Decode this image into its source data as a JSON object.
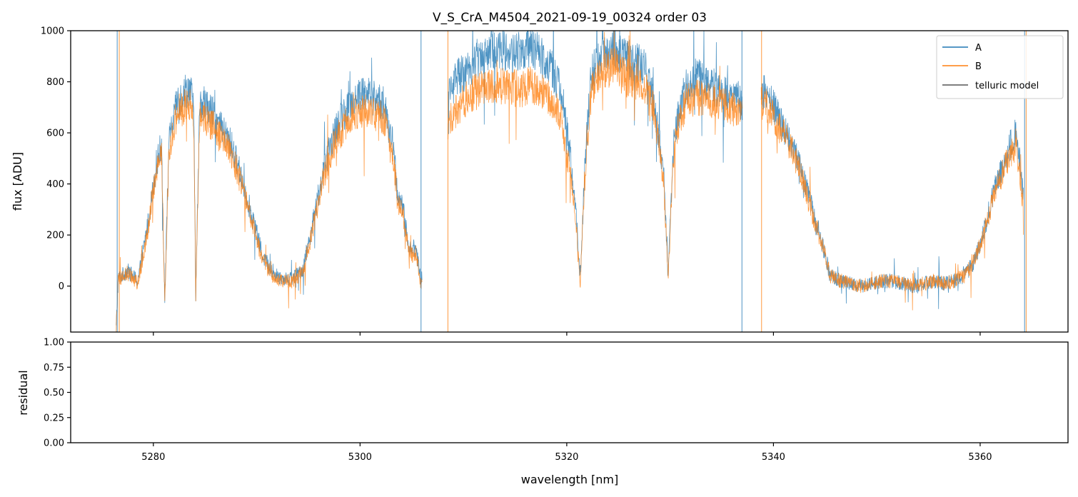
{
  "chart_data": [
    {
      "type": "line",
      "title": "V_S_CrA_M4504_2021-09-19_00324  order 03",
      "xlabel": "",
      "ylabel": "flux [ADU]",
      "xlim": [
        5272,
        5368.5
      ],
      "ylim": [
        -180,
        1000
      ],
      "x_ticks": [
        5280,
        5300,
        5320,
        5340,
        5360
      ],
      "x_tick_labels_shown": false,
      "y_ticks": [
        0,
        200,
        400,
        600,
        800,
        1000
      ],
      "grid": false,
      "legend_position": "top-right",
      "legend": [
        "A",
        "B",
        "telluric model"
      ],
      "colors": {
        "A": "#1f77b4",
        "B": "#ff7f0e",
        "telluric model": "#555555"
      },
      "series": [
        {
          "name": "A",
          "x": [
            5276.4,
            5276.6,
            5277.5,
            5278.5,
            5279.5,
            5280.3,
            5280.8,
            5281.1,
            5281.5,
            5282.3,
            5283.0,
            5283.5,
            5283.9,
            5284.1,
            5284.5,
            5285.5,
            5286.5,
            5287.5,
            5288.5,
            5289.5,
            5290.5,
            5291.5,
            5292.5,
            5293.5,
            5294.5,
            5295.5,
            5296.5,
            5297.5,
            5298.5,
            5299.5,
            5300.5,
            5301.5,
            5302.3,
            5302.9,
            5303.2,
            5303.6,
            5304.2,
            5304.8,
            5305.4,
            5305.9,
            5308.6,
            5309.5,
            5310.5,
            5311.5,
            5312.5,
            5313.5,
            5314.5,
            5315.5,
            5316.5,
            5317.5,
            5318.5,
            5319.5,
            5320.3,
            5320.8,
            5321.3,
            5321.8,
            5322.4,
            5323.5,
            5324.5,
            5325.5,
            5326.5,
            5327.5,
            5328.5,
            5329.4,
            5329.8,
            5330.4,
            5331.5,
            5332.5,
            5333.5,
            5334.5,
            5335.5,
            5336.5,
            5336.9,
            5338.9,
            5339.5,
            5340.5,
            5341.5,
            5342.5,
            5343.5,
            5344.5,
            5345.5,
            5346.5,
            5347.5,
            5348.5,
            5349.5,
            5350.5,
            5351.5,
            5352.5,
            5353.5,
            5354.5,
            5355.5,
            5356.5,
            5357.5,
            5358.5,
            5359.5,
            5360.5,
            5361.5,
            5362.5,
            5363.5,
            5364.2
          ],
          "y": [
            -170,
            30,
            60,
            20,
            250,
            480,
            560,
            -60,
            560,
            720,
            760,
            780,
            710,
            -30,
            730,
            690,
            620,
            560,
            430,
            280,
            130,
            50,
            30,
            30,
            70,
            260,
            460,
            600,
            680,
            740,
            760,
            730,
            720,
            580,
            560,
            370,
            290,
            140,
            150,
            20,
            760,
            820,
            850,
            900,
            920,
            930,
            910,
            920,
            940,
            900,
            860,
            760,
            520,
            350,
            20,
            520,
            840,
            920,
            940,
            900,
            880,
            860,
            720,
            420,
            40,
            600,
            780,
            820,
            800,
            770,
            760,
            750,
            700,
            770,
            740,
            660,
            580,
            480,
            340,
            200,
            40,
            20,
            10,
            0,
            10,
            20,
            20,
            10,
            0,
            10,
            20,
            10,
            20,
            40,
            100,
            240,
            400,
            500,
            620,
            350
          ]
        },
        {
          "name": "B",
          "x": [
            5276.4,
            5276.6,
            5277.5,
            5278.5,
            5279.5,
            5280.3,
            5280.8,
            5281.1,
            5281.5,
            5282.3,
            5283.0,
            5283.5,
            5283.9,
            5284.1,
            5284.5,
            5285.5,
            5286.5,
            5287.5,
            5288.5,
            5289.5,
            5290.5,
            5291.5,
            5292.5,
            5293.5,
            5294.5,
            5295.5,
            5296.5,
            5297.5,
            5298.5,
            5299.5,
            5300.5,
            5301.5,
            5302.3,
            5302.9,
            5303.2,
            5303.6,
            5304.2,
            5304.8,
            5305.4,
            5305.9,
            5308.6,
            5309.5,
            5310.5,
            5311.5,
            5312.5,
            5313.5,
            5314.5,
            5315.5,
            5316.5,
            5317.5,
            5318.5,
            5319.5,
            5320.3,
            5320.8,
            5321.3,
            5321.8,
            5322.4,
            5323.5,
            5324.5,
            5325.5,
            5326.5,
            5327.5,
            5328.5,
            5329.4,
            5329.8,
            5330.4,
            5331.5,
            5332.5,
            5333.5,
            5334.5,
            5335.5,
            5336.5,
            5336.9,
            5338.9,
            5339.5,
            5340.5,
            5341.5,
            5342.5,
            5343.5,
            5344.5,
            5345.5,
            5346.5,
            5347.5,
            5348.5,
            5349.5,
            5350.5,
            5351.5,
            5352.5,
            5353.5,
            5354.5,
            5355.5,
            5356.5,
            5357.5,
            5358.5,
            5359.5,
            5360.5,
            5361.5,
            5362.5,
            5363.5,
            5364.2
          ],
          "y": [
            -160,
            20,
            50,
            10,
            230,
            460,
            530,
            -80,
            530,
            680,
            700,
            720,
            660,
            -40,
            680,
            640,
            580,
            520,
            400,
            260,
            110,
            40,
            20,
            20,
            60,
            240,
            430,
            560,
            630,
            680,
            690,
            670,
            660,
            540,
            520,
            340,
            270,
            120,
            130,
            0,
            640,
            700,
            740,
            770,
            780,
            780,
            780,
            770,
            790,
            760,
            730,
            650,
            450,
            300,
            0,
            460,
            780,
            840,
            860,
            820,
            800,
            780,
            680,
            400,
            30,
            560,
            720,
            740,
            730,
            720,
            700,
            690,
            660,
            720,
            700,
            630,
            560,
            460,
            320,
            190,
            40,
            20,
            10,
            0,
            10,
            20,
            20,
            10,
            0,
            10,
            20,
            10,
            20,
            40,
            100,
            230,
            380,
            480,
            560,
            300
          ]
        },
        {
          "name": "telluric model",
          "x": [],
          "y": []
        }
      ]
    },
    {
      "type": "line",
      "title": "",
      "xlabel": "wavelength [nm]",
      "ylabel": "residual",
      "xlim": [
        5272,
        5368.5
      ],
      "ylim": [
        0,
        1
      ],
      "x_ticks": [
        5280,
        5300,
        5320,
        5340,
        5360
      ],
      "y_ticks": [
        0.0,
        0.25,
        0.5,
        0.75,
        1.0
      ],
      "y_tick_labels": [
        "0.00",
        "0.25",
        "0.50",
        "0.75",
        "1.00"
      ],
      "grid": false,
      "series": []
    }
  ]
}
